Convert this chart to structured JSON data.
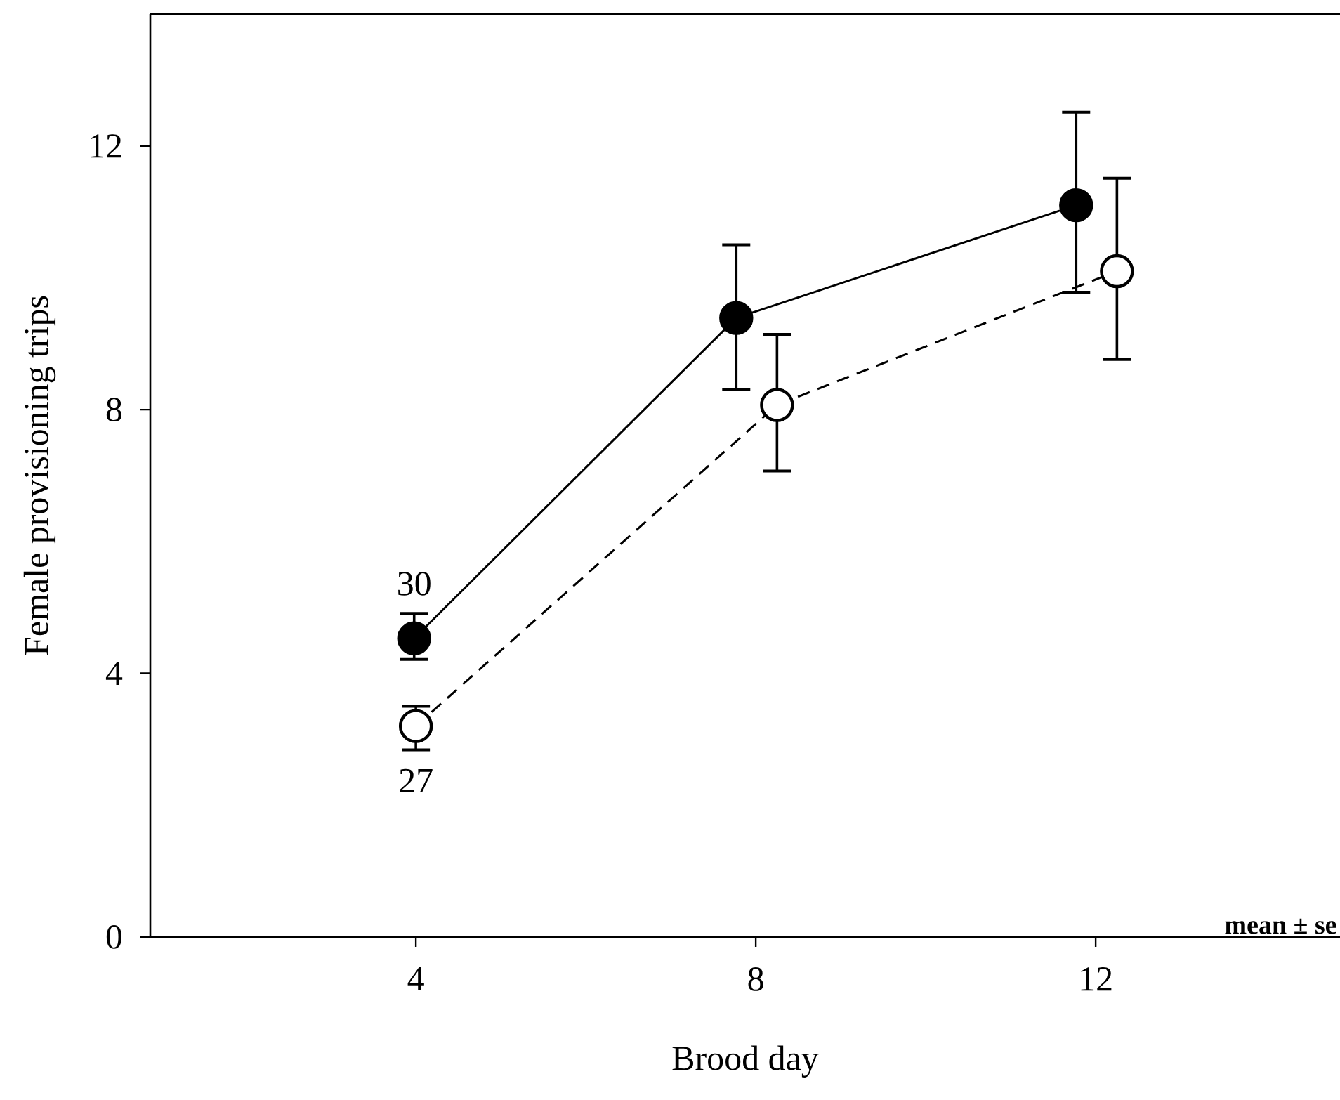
{
  "chart_data": {
    "type": "line",
    "xlabel": "Brood day",
    "ylabel": "Female provisioning trips",
    "xlim": [
      0.875,
      14.875
    ],
    "ylim": [
      0,
      14
    ],
    "xticks": [
      4,
      8,
      12
    ],
    "yticks": [
      0,
      4,
      8,
      12
    ],
    "grid": false,
    "marker": "circle",
    "series": [
      {
        "color": "#000000",
        "line_style": "solid",
        "x": [
          3.98,
          7.77,
          11.77
        ],
        "values": [
          4.53,
          9.39,
          11.1
        ],
        "errors": [
          [
            4.21,
            4.91
          ],
          [
            8.31,
            10.5
          ],
          [
            9.78,
            12.51
          ]
        ]
      },
      {
        "color": "#ffffff",
        "line_style": "dashed",
        "x": [
          4.0,
          8.25,
          12.25
        ],
        "values": [
          3.2,
          8.07,
          10.1
        ],
        "errors": [
          [
            2.84,
            3.5
          ],
          [
            7.07,
            9.14
          ],
          [
            8.76,
            11.51
          ]
        ]
      }
    ],
    "annotations": [
      {
        "text": "30",
        "x": 3.98,
        "y": 4.53
      },
      {
        "text": "27",
        "x": 4.0,
        "y": 3.2
      },
      "mean ± se"
    ]
  }
}
